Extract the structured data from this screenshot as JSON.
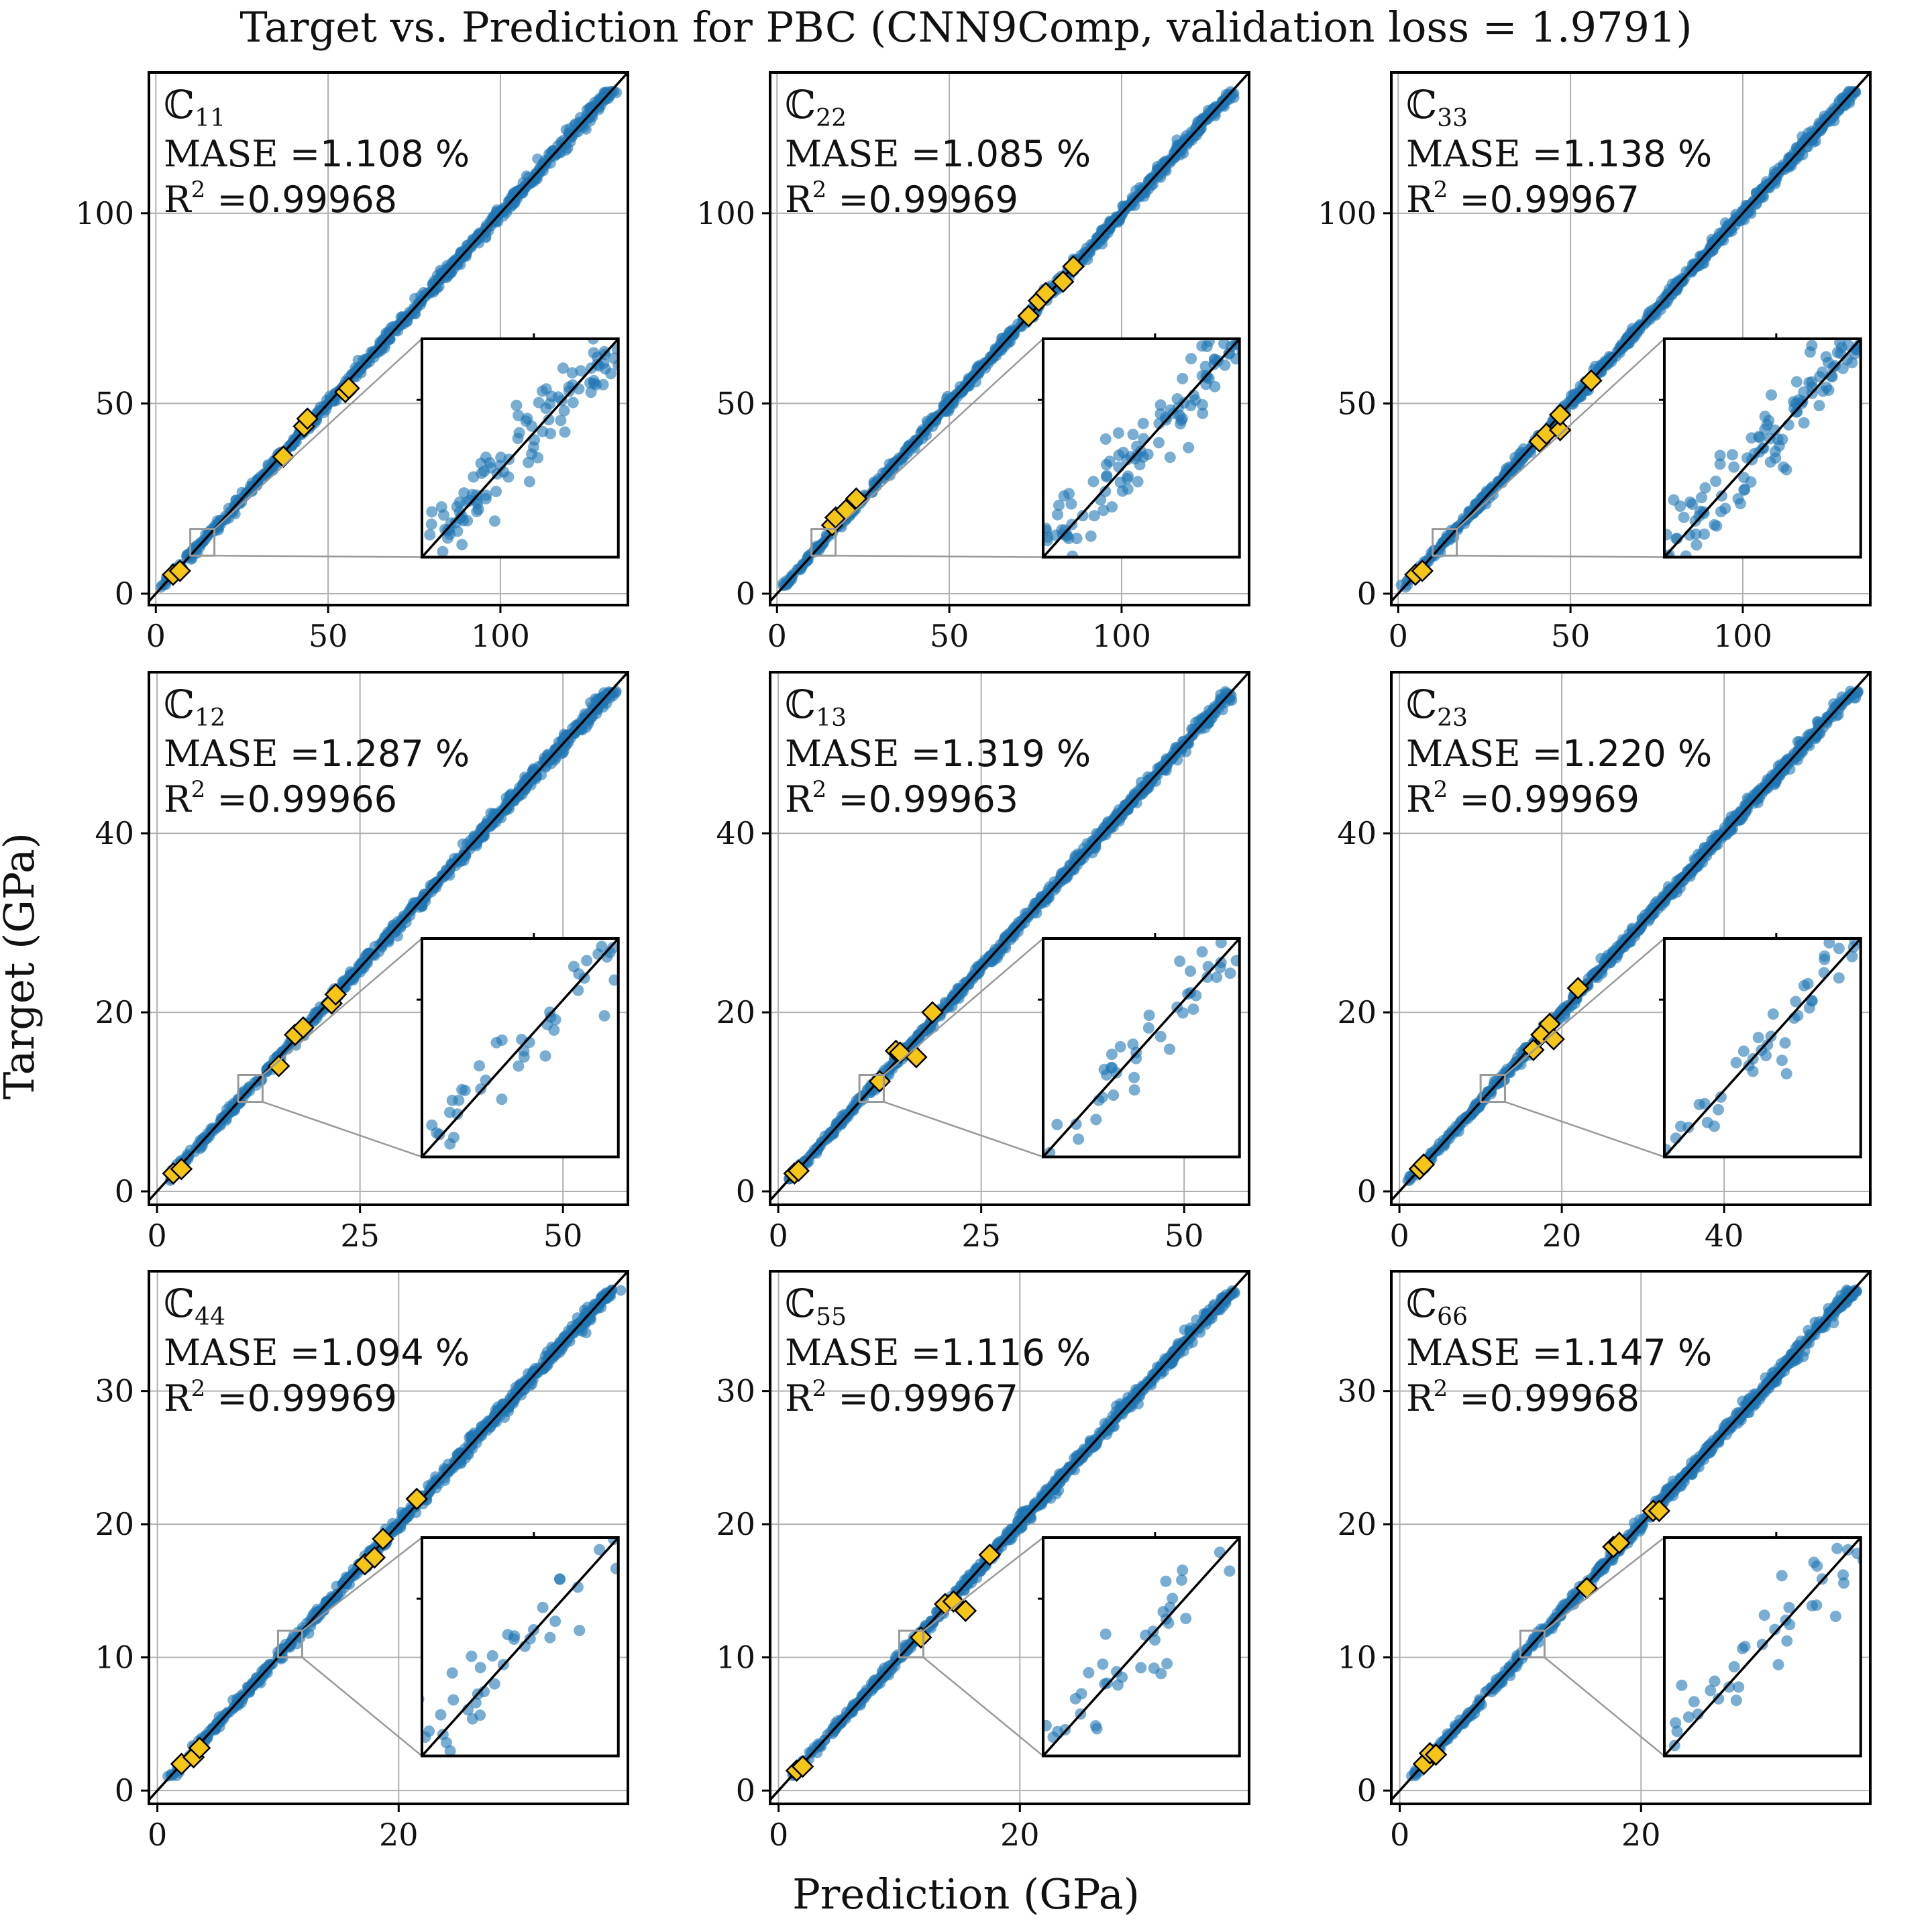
{
  "figure": {
    "title": "Target vs. Prediction for PBC (CNN9Comp, validation loss = 1.9791)",
    "xlabel": "Prediction (GPa)",
    "ylabel": "Target (GPa)"
  },
  "colors": {
    "points": "#1f77b4",
    "highlight": "#f5c518",
    "grid": "#b0b0b0",
    "inset_frame": "#999999"
  },
  "chart_data": [
    {
      "type": "scatter",
      "component": "ℂ",
      "sub": "11",
      "mase_label": "MASE =",
      "mase_value": "1.108 %",
      "r2_label": "R",
      "r2_sup": "2",
      "r2_eq": " =",
      "r2_value": "0.99968",
      "xlim": [
        -2,
        137
      ],
      "ylim": [
        -3,
        137
      ],
      "ticks": [
        0,
        50,
        100
      ],
      "xtick_labels": [
        "0",
        "50",
        "100"
      ],
      "ytick_labels": [
        "0",
        "50",
        "100"
      ],
      "highlights": [
        [
          5,
          5
        ],
        [
          7,
          6
        ],
        [
          37,
          36
        ],
        [
          43,
          44
        ],
        [
          44,
          46
        ],
        [
          55,
          53
        ],
        [
          56,
          54
        ]
      ],
      "zoom_x": [
        10,
        17
      ],
      "zoom_y": [
        10,
        17
      ]
    },
    {
      "type": "scatter",
      "component": "ℂ",
      "sub": "22",
      "mase_label": "MASE =",
      "mase_value": "1.085 %",
      "r2_label": "R",
      "r2_sup": "2",
      "r2_eq": " =",
      "r2_value": "0.99969",
      "xlim": [
        -2,
        137
      ],
      "ylim": [
        -3,
        137
      ],
      "ticks": [
        0,
        50,
        100
      ],
      "xtick_labels": [
        "0",
        "50",
        "100"
      ],
      "ytick_labels": [
        "0",
        "50",
        "100"
      ],
      "highlights": [
        [
          16,
          18
        ],
        [
          17,
          20
        ],
        [
          20,
          22
        ],
        [
          23,
          25
        ],
        [
          73,
          73
        ],
        [
          76,
          77
        ],
        [
          78,
          79
        ],
        [
          83,
          82
        ],
        [
          86,
          86
        ]
      ],
      "zoom_x": [
        10,
        17
      ],
      "zoom_y": [
        10,
        17
      ]
    },
    {
      "type": "scatter",
      "component": "ℂ",
      "sub": "33",
      "mase_label": "MASE =",
      "mase_value": "1.138 %",
      "r2_label": "R",
      "r2_sup": "2",
      "r2_eq": " =",
      "r2_value": "0.99967",
      "xlim": [
        -2,
        137
      ],
      "ylim": [
        -3,
        137
      ],
      "ticks": [
        0,
        50,
        100
      ],
      "xtick_labels": [
        "0",
        "50",
        "100"
      ],
      "ytick_labels": [
        "0",
        "50",
        "100"
      ],
      "highlights": [
        [
          5,
          5
        ],
        [
          7,
          6
        ],
        [
          41,
          40
        ],
        [
          43,
          42
        ],
        [
          47,
          43
        ],
        [
          47,
          47
        ],
        [
          56,
          56
        ]
      ],
      "zoom_x": [
        10,
        17
      ],
      "zoom_y": [
        10,
        17
      ]
    },
    {
      "type": "scatter",
      "component": "ℂ",
      "sub": "12",
      "mase_label": "MASE =",
      "mase_value": "1.287 %",
      "r2_label": "R",
      "r2_sup": "2",
      "r2_eq": " =",
      "r2_value": "0.99966",
      "xlim": [
        -1,
        58
      ],
      "ylim": [
        -1.5,
        58
      ],
      "ticks": [
        0,
        25,
        50
      ],
      "xtick_labels": [
        "0",
        "25",
        "50"
      ],
      "ytick_labels": [
        "0",
        "20",
        "40"
      ],
      "yticks": [
        0,
        20,
        40
      ],
      "highlights": [
        [
          2,
          2
        ],
        [
          3,
          2.5
        ],
        [
          15,
          14
        ],
        [
          17,
          17.5
        ],
        [
          18,
          18.3
        ],
        [
          21.5,
          21
        ],
        [
          22,
          22
        ]
      ],
      "zoom_x": [
        10,
        13
      ],
      "zoom_y": [
        10,
        13
      ]
    },
    {
      "type": "scatter",
      "component": "ℂ",
      "sub": "13",
      "mase_label": "MASE =",
      "mase_value": "1.319 %",
      "r2_label": "R",
      "r2_sup": "2",
      "r2_eq": " =",
      "r2_value": "0.99963",
      "xlim": [
        -1,
        58
      ],
      "ylim": [
        -1.5,
        58
      ],
      "ticks": [
        0,
        25,
        50
      ],
      "xtick_labels": [
        "0",
        "25",
        "50"
      ],
      "ytick_labels": [
        "0",
        "20",
        "40"
      ],
      "yticks": [
        0,
        20,
        40
      ],
      "highlights": [
        [
          2,
          2
        ],
        [
          2.5,
          2.3
        ],
        [
          12.5,
          12.3
        ],
        [
          14.5,
          15.7
        ],
        [
          15,
          15.5
        ],
        [
          17,
          15
        ],
        [
          19,
          20
        ]
      ],
      "zoom_x": [
        10,
        13
      ],
      "zoom_y": [
        10,
        13
      ]
    },
    {
      "type": "scatter",
      "component": "ℂ",
      "sub": "23",
      "mase_label": "MASE =",
      "mase_value": "1.220 %",
      "r2_label": "R",
      "r2_sup": "2",
      "r2_eq": " =",
      "r2_value": "0.99969",
      "xlim": [
        -1,
        58
      ],
      "ylim": [
        -1.5,
        58
      ],
      "ticks": [
        0,
        20,
        40
      ],
      "xtick_labels": [
        "0",
        "20",
        "40"
      ],
      "ytick_labels": [
        "0",
        "20",
        "40"
      ],
      "yticks": [
        0,
        20,
        40
      ],
      "highlights": [
        [
          2.5,
          2.5
        ],
        [
          3,
          3
        ],
        [
          16.5,
          15.8
        ],
        [
          17.5,
          17.5
        ],
        [
          18.5,
          18.7
        ],
        [
          19,
          17
        ],
        [
          22,
          22.7
        ]
      ],
      "zoom_x": [
        10,
        13
      ],
      "zoom_y": [
        10,
        13
      ]
    },
    {
      "type": "scatter",
      "component": "ℂ",
      "sub": "44",
      "mase_label": "MASE =",
      "mase_value": "1.094 %",
      "r2_label": "R",
      "r2_sup": "2",
      "r2_eq": " =",
      "r2_value": "0.99969",
      "xlim": [
        -0.7,
        39
      ],
      "ylim": [
        -1,
        39
      ],
      "ticks": [
        0,
        20
      ],
      "xtick_labels": [
        "0",
        "20"
      ],
      "ytick_labels": [
        "0",
        "10",
        "20",
        "30"
      ],
      "yticks": [
        0,
        10,
        20,
        30
      ],
      "highlights": [
        [
          2,
          2
        ],
        [
          3,
          2.5
        ],
        [
          3.5,
          3.2
        ],
        [
          17.2,
          17
        ],
        [
          18,
          17.5
        ],
        [
          18.7,
          18.9
        ],
        [
          21.5,
          21.9
        ]
      ],
      "zoom_x": [
        10,
        12
      ],
      "zoom_y": [
        10,
        12
      ]
    },
    {
      "type": "scatter",
      "component": "ℂ",
      "sub": "55",
      "mase_label": "MASE =",
      "mase_value": "1.116 %",
      "r2_label": "R",
      "r2_sup": "2",
      "r2_eq": " =",
      "r2_value": "0.99967",
      "xlim": [
        -0.7,
        39
      ],
      "ylim": [
        -1,
        39
      ],
      "ticks": [
        0,
        20
      ],
      "xtick_labels": [
        "0",
        "20"
      ],
      "ytick_labels": [
        "0",
        "10",
        "20",
        "30"
      ],
      "yticks": [
        0,
        10,
        20,
        30
      ],
      "highlights": [
        [
          1.5,
          1.5
        ],
        [
          2,
          1.8
        ],
        [
          11.8,
          11.5
        ],
        [
          13.8,
          14
        ],
        [
          14.5,
          14.2
        ],
        [
          15.5,
          13.5
        ],
        [
          17.5,
          17.7
        ]
      ],
      "zoom_x": [
        10,
        12
      ],
      "zoom_y": [
        10,
        12
      ]
    },
    {
      "type": "scatter",
      "component": "ℂ",
      "sub": "66",
      "mase_label": "MASE =",
      "mase_value": "1.147 %",
      "r2_label": "R",
      "r2_sup": "2",
      "r2_eq": " =",
      "r2_value": "0.99968",
      "xlim": [
        -0.7,
        39
      ],
      "ylim": [
        -1,
        39
      ],
      "ticks": [
        0,
        20
      ],
      "xtick_labels": [
        "0",
        "20"
      ],
      "ytick_labels": [
        "0",
        "10",
        "20",
        "30"
      ],
      "yticks": [
        0,
        10,
        20,
        30
      ],
      "highlights": [
        [
          2,
          2
        ],
        [
          2.5,
          2.8
        ],
        [
          3,
          2.7
        ],
        [
          15.5,
          15.2
        ],
        [
          17.7,
          18.3
        ],
        [
          18.2,
          18.6
        ],
        [
          21,
          21
        ],
        [
          21.5,
          21
        ]
      ],
      "zoom_x": [
        10,
        12
      ],
      "zoom_y": [
        10,
        12
      ]
    }
  ]
}
